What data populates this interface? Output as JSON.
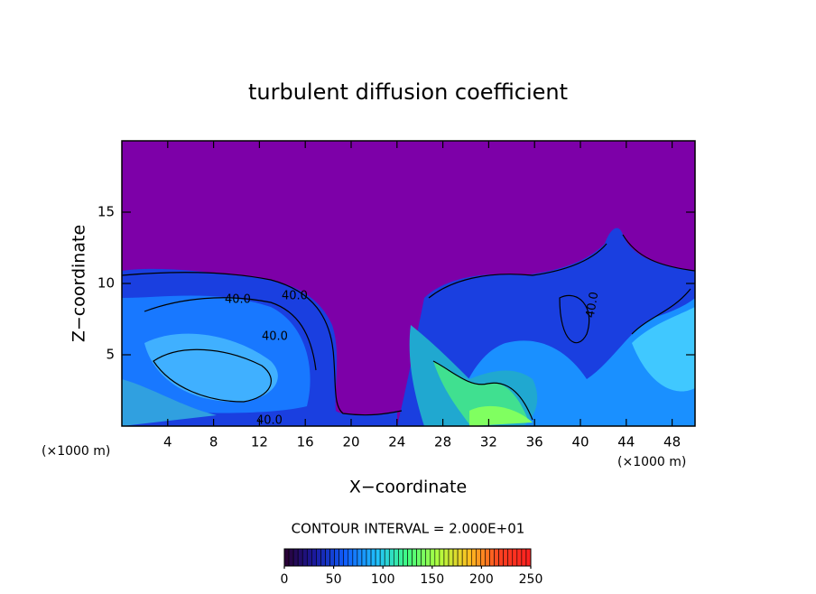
{
  "chart_data": {
    "type": "contour",
    "title": "turbulent diffusion coefficient",
    "xlabel": "X−coordinate",
    "ylabel": "Z−coordinate",
    "x_unit_label": "(×1000 m)",
    "y_unit_label": "(×1000 m)",
    "xlim": [
      0,
      50
    ],
    "xticks": [
      4,
      8,
      12,
      16,
      20,
      24,
      28,
      32,
      36,
      40,
      44,
      48
    ],
    "ylim": [
      0,
      20
    ],
    "yticks": [
      5,
      10,
      15
    ],
    "annotations": [
      "40.0",
      "40.0",
      "40.0",
      "40.0",
      "40.0"
    ],
    "contour_interval": "CONTOUR INTERVAL = 2.000E+01",
    "colorbar": {
      "clim": [
        0,
        250
      ],
      "ticks": [
        0,
        50,
        100,
        150,
        200,
        250
      ],
      "colormap": [
        "#2a0030",
        "#1a1aa0",
        "#1060ff",
        "#20c0ff",
        "#40ff80",
        "#b0ff40",
        "#ffc020",
        "#ff4020",
        "#ff2020"
      ]
    },
    "background_color": "#7d00a8"
  }
}
